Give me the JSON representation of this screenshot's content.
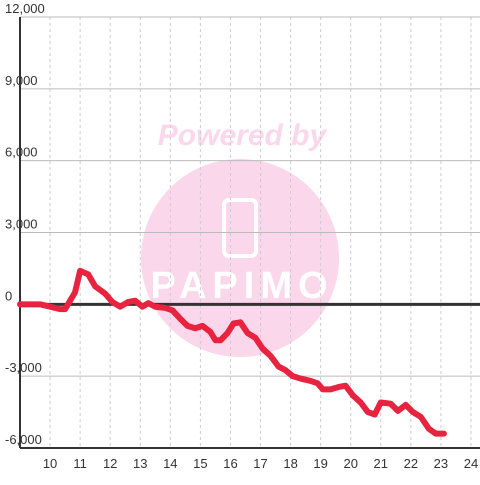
{
  "chart_data": {
    "type": "line",
    "watermark": {
      "text": "Powered by",
      "logo_text": "PAPIMO"
    },
    "x": [
      9,
      9.67,
      10,
      10.33,
      10.5,
      10.83,
      11,
      11.27,
      11.5,
      11.83,
      12.07,
      12.33,
      12.6,
      12.83,
      13.07,
      13.27,
      13.5,
      13.83,
      14.07,
      14.33,
      14.57,
      14.83,
      15.07,
      15.33,
      15.5,
      15.67,
      15.9,
      16.1,
      16.33,
      16.57,
      16.83,
      17.07,
      17.33,
      17.6,
      17.83,
      18.07,
      18.33,
      18.67,
      18.9,
      19.07,
      19.33,
      19.6,
      19.83,
      20.07,
      20.33,
      20.57,
      20.8,
      21,
      21.33,
      21.57,
      21.83,
      22.07,
      22.33,
      22.6,
      22.83,
      23.1
    ],
    "series": [
      {
        "color": "#e8233f",
        "values": [
          0,
          0,
          -100,
          -200,
          -200,
          500,
          1400,
          1250,
          750,
          450,
          100,
          -100,
          100,
          150,
          -100,
          50,
          -100,
          -150,
          -250,
          -600,
          -900,
          -1000,
          -900,
          -1150,
          -1500,
          -1500,
          -1200,
          -800,
          -750,
          -1200,
          -1400,
          -1850,
          -2150,
          -2600,
          -2750,
          -3000,
          -3100,
          -3200,
          -3300,
          -3550,
          -3550,
          -3450,
          -3400,
          -3800,
          -4100,
          -4500,
          -4600,
          -4100,
          -4150,
          -4450,
          -4200,
          -4500,
          -4700,
          -5200,
          -5400,
          -5400
        ]
      }
    ],
    "xlim": [
      9,
      24.3
    ],
    "xticks": [
      10,
      11,
      12,
      13,
      14,
      15,
      16,
      17,
      18,
      19,
      20,
      21,
      22,
      23,
      24
    ],
    "ylim": [
      -6000,
      12000
    ],
    "yticks": [
      {
        "value": -6000,
        "label": "-6,000"
      },
      {
        "value": -3000,
        "label": "-3,000"
      },
      0,
      {
        "value": 3000,
        "label": "3,000"
      },
      {
        "value": 6000,
        "label": "6,000"
      },
      {
        "value": 9000,
        "label": "9,000"
      },
      {
        "value": 12000,
        "label": "12,000"
      }
    ],
    "grid": true
  }
}
